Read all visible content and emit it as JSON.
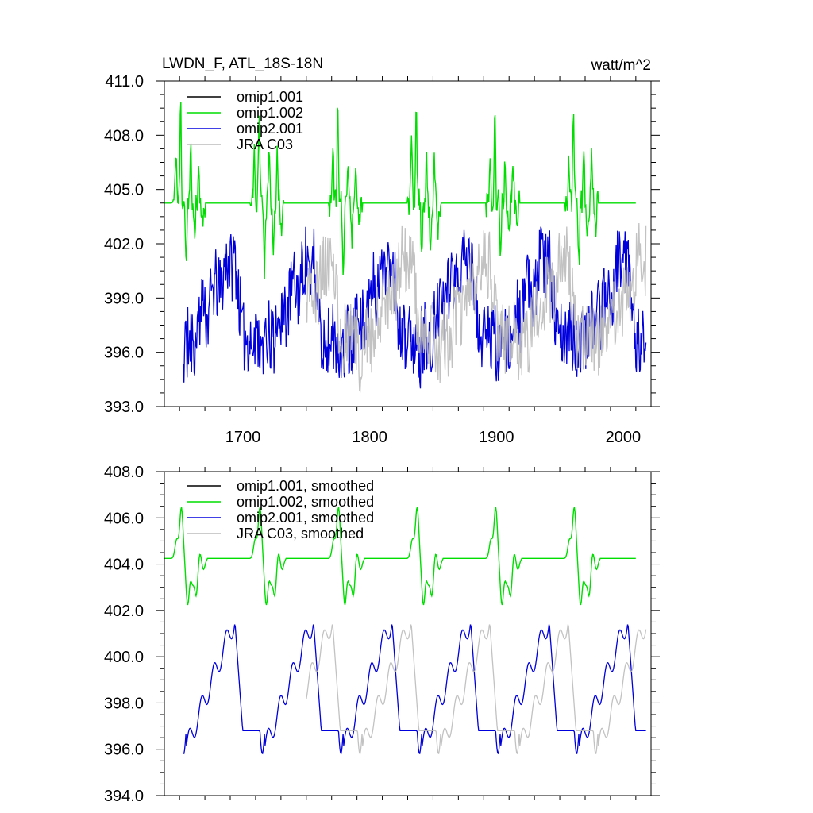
{
  "chart_data": [
    {
      "type": "line",
      "title": "LWDN_F, ATL_18S-18N",
      "units": "watt/m^2",
      "xlim": [
        1638,
        2022
      ],
      "ylim": [
        393.0,
        411.0
      ],
      "yticks": [
        393.0,
        396.0,
        399.0,
        402.0,
        405.0,
        408.0,
        411.0
      ],
      "ytick_labels": [
        "393.0",
        "396.0",
        "399.0",
        "402.0",
        "405.0",
        "408.0",
        "411.0"
      ],
      "xticks": [
        1700,
        1800,
        1900,
        2000
      ],
      "xtick_labels": [
        "1700",
        "1800",
        "1900",
        "2000"
      ],
      "legend": [
        "omip1.001",
        "omip1.002",
        "omip2.001",
        "JRA C03"
      ],
      "series": [
        {
          "name": "omip1.001",
          "color": "#000000",
          "start": 1653,
          "end": 1958,
          "note": "hidden beneath omip1.002"
        },
        {
          "name": "omip1.002",
          "color": "#00dd00",
          "start": 1638,
          "end": 2016
        },
        {
          "name": "omip2.001",
          "color": "#0000dd",
          "start": 1653,
          "end": 2018
        },
        {
          "name": "JRA C03",
          "color": "#bbbbbb",
          "start": 1750,
          "end": 2018
        }
      ]
    },
    {
      "type": "line",
      "title": "",
      "xlim": [
        1638,
        2022
      ],
      "ylim": [
        394.0,
        408.0
      ],
      "yticks": [
        394.0,
        396.0,
        398.0,
        400.0,
        402.0,
        404.0,
        406.0,
        408.0
      ],
      "ytick_labels": [
        "394.0",
        "396.0",
        "398.0",
        "400.0",
        "402.0",
        "404.0",
        "406.0",
        "408.0"
      ],
      "xticks": [
        1700,
        1800,
        1900,
        2000
      ],
      "legend": [
        "omip1.001, smoothed",
        "omip1.002, smoothed",
        "omip2.001, smoothed",
        "JRA C03, smoothed"
      ],
      "series": [
        {
          "name": "omip1.001, smoothed",
          "color": "#000000"
        },
        {
          "name": "omip1.002, smoothed",
          "color": "#00dd00"
        },
        {
          "name": "omip2.001, smoothed",
          "color": "#0000dd"
        },
        {
          "name": "JRA C03, smoothed",
          "color": "#bbbbbb"
        }
      ]
    }
  ]
}
